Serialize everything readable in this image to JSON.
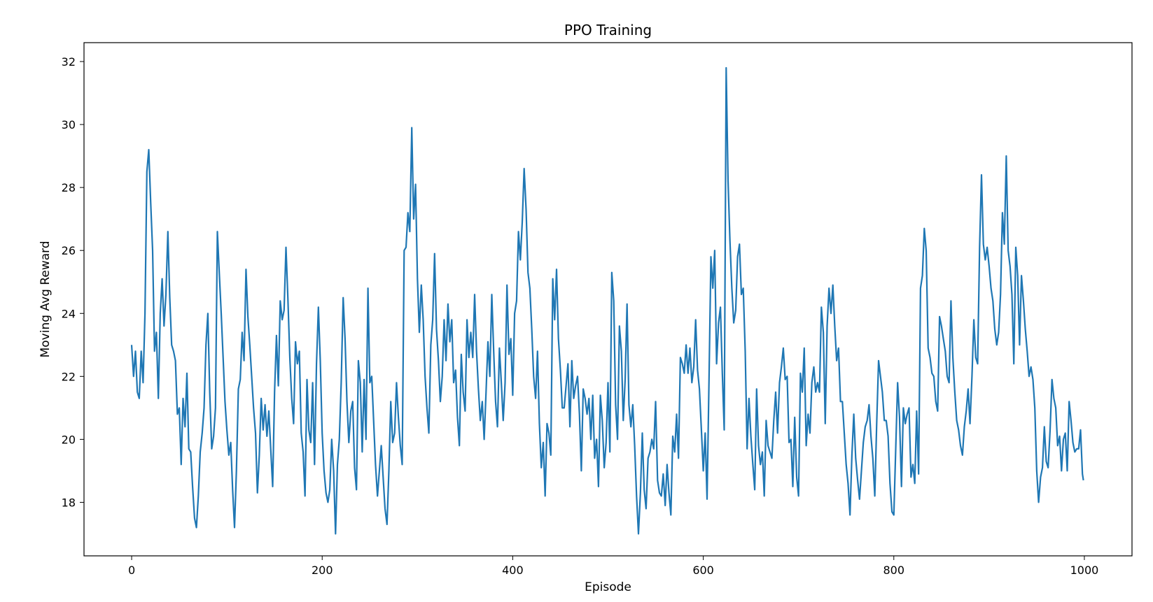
{
  "chart_data": {
    "type": "line",
    "title": "PPO Training",
    "xlabel": "Episode",
    "ylabel": "Moving Avg Reward",
    "xlim": [
      -50,
      1050
    ],
    "ylim": [
      16.3,
      32.6
    ],
    "xticks": [
      0,
      200,
      400,
      600,
      800,
      1000
    ],
    "yticks": [
      18,
      20,
      22,
      24,
      26,
      28,
      30,
      32
    ],
    "grid": false,
    "line_color": "#1f77b4",
    "series": [
      {
        "x": [
          0,
          2,
          4,
          6,
          8,
          10,
          12,
          14,
          16,
          18,
          20,
          22,
          24,
          26,
          28,
          30,
          32,
          34,
          36,
          38,
          40,
          42,
          44,
          46,
          48,
          50,
          52,
          54,
          56,
          58,
          60,
          62,
          64,
          66,
          68,
          70,
          72,
          74,
          76,
          78,
          80,
          82,
          84,
          86,
          88,
          90,
          92,
          94,
          96,
          98,
          100,
          102,
          104,
          106,
          108,
          110,
          112,
          114,
          116,
          118,
          120,
          122,
          124,
          126,
          128,
          130,
          132,
          134,
          136,
          138,
          140,
          142,
          144,
          146,
          148,
          150,
          152,
          154,
          156,
          158,
          160,
          162,
          164,
          166,
          168,
          170,
          172,
          174,
          176,
          178,
          180,
          182,
          184,
          186,
          188,
          190,
          192,
          194,
          196,
          198,
          200,
          202,
          204,
          206,
          208,
          210,
          212,
          214,
          216,
          218,
          220,
          222,
          224,
          226,
          228,
          230,
          232,
          234,
          236,
          238,
          240,
          242,
          244,
          246,
          248,
          250,
          252,
          254,
          256,
          258,
          260,
          262,
          264,
          266,
          268,
          270,
          272,
          274,
          276,
          278,
          280,
          282,
          284,
          286,
          288,
          290,
          292,
          294,
          296,
          298,
          300,
          302,
          304,
          306,
          308,
          310,
          312,
          314,
          316,
          318,
          320,
          322,
          324,
          326,
          328,
          330,
          332,
          334,
          336,
          338,
          340,
          342,
          344,
          346,
          348,
          350,
          352,
          354,
          356,
          358,
          360,
          362,
          364,
          366,
          368,
          370,
          372,
          374,
          376,
          378,
          380,
          382,
          384,
          386,
          388,
          390,
          392,
          394,
          396,
          398,
          400,
          402,
          404,
          406,
          408,
          410,
          412,
          414,
          416,
          418,
          420,
          422,
          424,
          426,
          428,
          430,
          432,
          434,
          436,
          438,
          440,
          442,
          444,
          446,
          448,
          450,
          452,
          454,
          456,
          458,
          460,
          462,
          464,
          466,
          468,
          470,
          472,
          474,
          476,
          478,
          480,
          482,
          484,
          486,
          488,
          490,
          492,
          494,
          496,
          498,
          500,
          502,
          504,
          506,
          508,
          510,
          512,
          514,
          516,
          518,
          520,
          522,
          524,
          526,
          528,
          530,
          532,
          534,
          536,
          538,
          540,
          542,
          544,
          546,
          548,
          550,
          552,
          554,
          556,
          558,
          560,
          562,
          564,
          566,
          568,
          570,
          572,
          574,
          576,
          578,
          580,
          582,
          584,
          586,
          588,
          590,
          592,
          594,
          596,
          598,
          600,
          602,
          604,
          606,
          608,
          610,
          612,
          614,
          616,
          618,
          620,
          622,
          624,
          626,
          628,
          630,
          632,
          634,
          636,
          638,
          640,
          642,
          644,
          646,
          648,
          650,
          652,
          654,
          656,
          658,
          660,
          662,
          664,
          666,
          668,
          670,
          672,
          674,
          676,
          678,
          680,
          682,
          684,
          686,
          688,
          690,
          692,
          694,
          696,
          698,
          700,
          702,
          704,
          706,
          708,
          710,
          712,
          714,
          716,
          718,
          720,
          722,
          724,
          726,
          728,
          730,
          732,
          734,
          736,
          738,
          740,
          742,
          744,
          746,
          748,
          750,
          752,
          754,
          756,
          758,
          760,
          762,
          764,
          766,
          768,
          770,
          772,
          774,
          776,
          778,
          780,
          782,
          784,
          786,
          788,
          790,
          792,
          794,
          796,
          798,
          800,
          802,
          804,
          806,
          808,
          810,
          812,
          814,
          816,
          818,
          820,
          822,
          824,
          826,
          828,
          830,
          832,
          834,
          836,
          838,
          840,
          842,
          844,
          846,
          848,
          850,
          852,
          854,
          856,
          858,
          860,
          862,
          864,
          866,
          868,
          870,
          872,
          874,
          876,
          878,
          880,
          882,
          884,
          886,
          888,
          890,
          892,
          894,
          896,
          898,
          900,
          902,
          904,
          906,
          908,
          910,
          912,
          914,
          916,
          918,
          920,
          922,
          924,
          926,
          928,
          930,
          932,
          934,
          936,
          938,
          940,
          942,
          944,
          946,
          948,
          950,
          952,
          954,
          956,
          958,
          960,
          962,
          964,
          966,
          968,
          970,
          972,
          974,
          976,
          978,
          980,
          982,
          984,
          986,
          988,
          990,
          992,
          994,
          996,
          998,
          999
        ],
        "y": [
          23.0,
          22.0,
          22.8,
          21.5,
          21.3,
          22.8,
          21.8,
          24.0,
          28.5,
          29.2,
          27.5,
          26.0,
          22.8,
          23.4,
          21.3,
          24.0,
          25.1,
          23.6,
          24.6,
          26.6,
          24.5,
          23.0,
          22.8,
          22.5,
          20.8,
          21.0,
          19.2,
          21.3,
          20.4,
          22.1,
          19.7,
          19.6,
          18.5,
          17.5,
          17.2,
          18.2,
          19.6,
          20.2,
          21.0,
          23.0,
          24.0,
          21.5,
          19.7,
          20.1,
          21.0,
          26.6,
          25.3,
          24.0,
          22.6,
          21.2,
          20.3,
          19.5,
          19.9,
          18.4,
          17.2,
          19.0,
          21.6,
          21.9,
          23.4,
          22.5,
          25.4,
          23.9,
          23.0,
          22.0,
          21.0,
          20.2,
          18.3,
          19.5,
          21.3,
          20.3,
          21.1,
          20.1,
          20.9,
          19.7,
          18.5,
          21.5,
          23.3,
          21.7,
          24.4,
          23.8,
          24.1,
          26.1,
          24.5,
          22.6,
          21.3,
          20.5,
          23.1,
          22.4,
          22.8,
          20.2,
          19.6,
          18.2,
          21.9,
          20.3,
          19.9,
          21.8,
          19.2,
          22.4,
          24.2,
          22.5,
          20.2,
          19.0,
          18.3,
          18.0,
          18.4,
          20.0,
          19.0,
          17.0,
          19.2,
          20.0,
          21.8,
          24.5,
          23.2,
          21.2,
          19.9,
          20.9,
          21.2,
          19.1,
          18.4,
          22.5,
          21.8,
          19.6,
          21.9,
          20.0,
          24.8,
          21.8,
          22.0,
          20.6,
          19.2,
          18.2,
          19.0,
          19.8,
          18.8,
          17.8,
          17.3,
          19.0,
          21.2,
          19.9,
          20.2,
          21.8,
          20.7,
          19.8,
          19.2,
          26.0,
          26.1,
          27.2,
          26.6,
          29.9,
          27.0,
          28.1,
          25.1,
          23.4,
          24.9,
          23.8,
          22.0,
          21.0,
          20.2,
          23.0,
          23.8,
          25.9,
          23.5,
          22.5,
          21.2,
          22.0,
          23.8,
          22.5,
          24.3,
          23.1,
          23.8,
          21.8,
          22.2,
          20.7,
          19.8,
          22.7,
          21.5,
          20.9,
          23.8,
          22.6,
          23.4,
          22.6,
          24.6,
          22.8,
          21.6,
          20.6,
          21.2,
          20.0,
          21.5,
          23.1,
          22.0,
          24.6,
          22.8,
          21.2,
          20.4,
          22.9,
          21.8,
          20.6,
          21.8,
          24.9,
          22.7,
          23.2,
          21.4,
          24.0,
          24.4,
          26.6,
          25.7,
          26.9,
          28.6,
          27.3,
          25.3,
          24.8,
          23.5,
          22.0,
          21.3,
          22.8,
          20.5,
          19.1,
          19.9,
          18.2,
          20.5,
          20.2,
          19.5,
          25.1,
          23.8,
          25.4,
          23.2,
          22.2,
          21.0,
          21.0,
          21.7,
          22.4,
          20.4,
          22.5,
          21.3,
          21.7,
          22.0,
          20.8,
          19.0,
          21.6,
          21.3,
          20.8,
          21.3,
          20.0,
          21.4,
          19.4,
          20.0,
          18.5,
          21.4,
          20.6,
          19.1,
          19.9,
          21.8,
          19.6,
          25.3,
          24.4,
          21.1,
          20.0,
          23.6,
          22.8,
          20.6,
          21.9,
          24.3,
          21.1,
          20.4,
          21.1,
          19.8,
          18.2,
          17.0,
          18.3,
          20.2,
          18.4,
          17.8,
          19.4,
          19.6,
          20.0,
          19.7,
          21.2,
          18.7,
          18.3,
          18.2,
          18.9,
          17.9,
          19.2,
          18.3,
          17.6,
          20.1,
          19.6,
          20.8,
          19.4,
          22.6,
          22.4,
          22.1,
          23.0,
          22.1,
          22.9,
          21.8,
          22.3,
          23.8,
          22.2,
          21.6,
          20.3,
          19.0,
          20.2,
          18.1,
          21.9,
          25.8,
          24.8,
          26.0,
          22.4,
          23.7,
          24.2,
          22.1,
          20.3,
          31.8,
          28.2,
          26.3,
          24.8,
          23.7,
          24.1,
          25.8,
          26.2,
          24.6,
          24.8,
          22.8,
          19.7,
          21.3,
          20.1,
          19.2,
          18.4,
          21.6,
          19.8,
          19.2,
          19.6,
          18.2,
          20.6,
          19.8,
          19.6,
          19.4,
          20.6,
          21.5,
          20.2,
          21.8,
          22.3,
          22.9,
          21.9,
          22.0,
          19.9,
          20.0,
          18.5,
          20.7,
          18.8,
          18.2,
          22.1,
          21.5,
          22.9,
          19.8,
          20.8,
          20.2,
          21.8,
          22.3,
          21.5,
          21.8,
          21.5,
          24.2,
          23.4,
          20.5,
          23.6,
          24.8,
          24.0,
          24.9,
          23.6,
          22.5,
          22.9,
          21.2,
          21.2,
          20.2,
          19.2,
          18.6,
          17.6,
          19.5,
          20.8,
          19.4,
          18.7,
          18.1,
          19.0,
          19.9,
          20.4,
          20.6,
          21.1,
          20.1,
          19.4,
          18.2,
          20.5,
          22.5,
          22.0,
          21.5,
          20.6,
          20.6,
          20.1,
          18.6,
          17.7,
          17.6,
          19.7,
          21.8,
          20.7,
          18.5,
          21.0,
          20.5,
          20.8,
          21.0,
          18.8,
          19.2,
          18.6,
          20.9,
          18.9,
          24.8,
          25.2,
          26.7,
          26.0,
          22.9,
          22.6,
          22.1,
          22.0,
          21.2,
          20.9,
          23.9,
          23.6,
          23.2,
          22.8,
          22.0,
          21.8,
          24.4,
          22.6,
          21.5,
          20.6,
          20.3,
          19.8,
          19.5,
          20.4,
          20.9,
          21.6,
          20.5,
          22.0,
          23.8,
          22.6,
          22.4,
          26.1,
          28.4,
          26.2,
          25.7,
          26.1,
          25.5,
          24.8,
          24.4,
          23.5,
          23.0,
          23.4,
          24.6,
          27.2,
          26.2,
          29.0,
          26.0,
          25.5,
          24.6,
          22.4,
          26.1,
          25.2,
          23.0,
          25.2,
          24.4,
          23.5,
          22.8,
          22.0,
          22.3,
          21.9,
          21.0,
          19.0,
          18.0,
          18.8,
          19.1,
          20.4,
          19.3,
          19.1,
          20.3,
          21.9,
          21.3,
          21.0,
          19.8,
          20.1,
          19.0,
          20.0,
          20.2,
          19.0,
          21.2,
          20.6,
          19.9,
          19.6,
          19.7,
          19.7,
          20.3,
          18.9,
          18.7
        ]
      }
    ]
  }
}
